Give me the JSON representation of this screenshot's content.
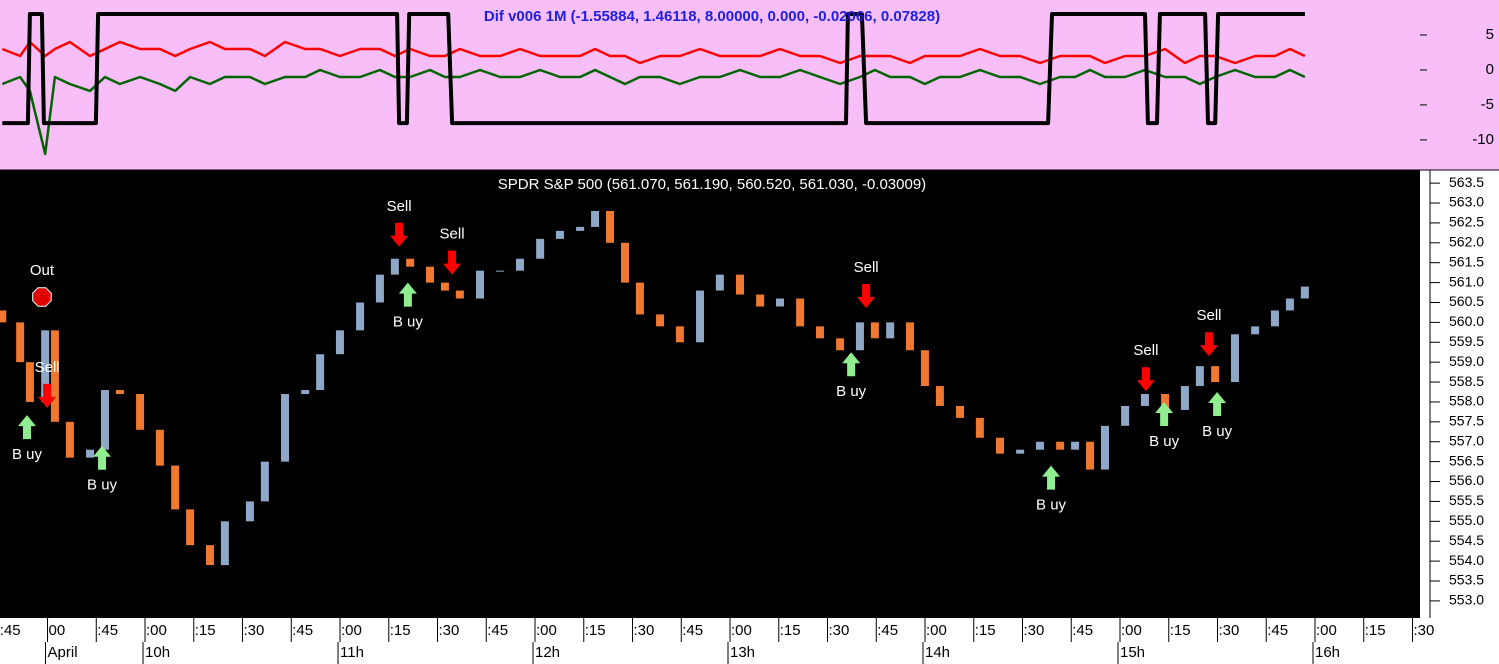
{
  "chart_data": [
    {
      "type": "line",
      "title": "Dif v006 1M (-1.55884, 1.46118, 8.00000, 0.000, -0.02066, 0.07828)",
      "xlim": [
        12.3,
        452
      ],
      "ylim": [
        -14.3,
        10
      ],
      "yticks": [
        5,
        0,
        -5,
        -10
      ],
      "background": "#f8bef8",
      "series": [
        {
          "color": "#ff0000",
          "x": [
            13,
            18.5,
            21.5,
            26.2,
            29.2,
            33.8,
            40,
            44.6,
            49.2,
            55.4,
            61.5,
            66.2,
            70.8,
            76.9,
            81.5,
            89.2,
            93.8,
            100,
            106.2,
            110.8,
            116.9,
            123.1,
            129.2,
            133.8,
            138.5,
            144.6,
            149.2,
            153.8,
            160,
            166.2,
            172.3,
            178.5,
            184.6,
            190.8,
            195.4,
            200,
            204.6,
            209.2,
            215.4,
            221.5,
            227.7,
            233.8,
            240,
            246.2,
            252.3,
            258.5,
            264.6,
            270.8,
            276.9,
            281.5,
            286.2,
            292.3,
            296.9,
            301.5,
            307.7,
            313.8,
            320,
            326.2,
            332.3,
            338.5,
            343.1,
            347.7,
            352.3,
            358.5,
            364.6,
            370.8,
            376.9,
            381.5,
            386.2,
            392.3,
            398.5,
            404.6,
            409.2,
            413.8
          ],
          "values": [
            3,
            2,
            4,
            2,
            3,
            4,
            2,
            3,
            4,
            3,
            3,
            2,
            3,
            4,
            3,
            3,
            2,
            4,
            3,
            3,
            2,
            3,
            3,
            2,
            3,
            2,
            2,
            3,
            2,
            2,
            3,
            2,
            2,
            2,
            3,
            2,
            2,
            1,
            2,
            2,
            3,
            2,
            2,
            2,
            3,
            2,
            2,
            1,
            2,
            2,
            2,
            1,
            2,
            2,
            2,
            3,
            2,
            2,
            1,
            2,
            2,
            2,
            1,
            2,
            2,
            3,
            1,
            2,
            2,
            1,
            2,
            2,
            3,
            2
          ]
        },
        {
          "color": "#006400",
          "x": [
            13,
            18.5,
            21.5,
            26.2,
            29.2,
            33.8,
            40,
            44.6,
            49.2,
            55.4,
            61.5,
            66.2,
            70.8,
            76.9,
            81.5,
            89.2,
            93.8,
            100,
            106.2,
            110.8,
            116.9,
            123.1,
            129.2,
            133.8,
            138.5,
            144.6,
            149.2,
            153.8,
            160,
            166.2,
            172.3,
            178.5,
            184.6,
            190.8,
            195.4,
            200,
            204.6,
            209.2,
            215.4,
            221.5,
            227.7,
            233.8,
            240,
            246.2,
            252.3,
            258.5,
            264.6,
            270.8,
            276.9,
            281.5,
            286.2,
            292.3,
            296.9,
            301.5,
            307.7,
            313.8,
            320,
            326.2,
            332.3,
            338.5,
            343.1,
            347.7,
            352.3,
            358.5,
            364.6,
            370.8,
            376.9,
            381.5,
            386.2,
            392.3,
            398.5,
            404.6,
            409.2,
            413.8
          ],
          "values": [
            -2,
            -1,
            -3,
            -12,
            -1,
            -2,
            -3,
            -1,
            -2,
            -1,
            -2,
            -3,
            -1,
            -2,
            -1,
            -1,
            -2,
            -1,
            -1,
            0,
            -1,
            -1,
            0,
            -1,
            -1,
            0,
            -1,
            -1,
            0,
            -1,
            -1,
            0,
            -1,
            -1,
            0,
            -1,
            -2,
            -1,
            -1,
            -2,
            -1,
            -1,
            0,
            -1,
            -1,
            0,
            -1,
            -2,
            -1,
            0,
            -1,
            -1,
            -2,
            -1,
            -1,
            0,
            -1,
            -1,
            -2,
            -1,
            -1,
            0,
            -1,
            -1,
            0,
            -1,
            -1,
            -2,
            -1,
            0,
            -1,
            -1,
            0,
            -1
          ]
        },
        {
          "color": "#000000",
          "x": [
            13,
            20.9,
            21.5,
            25.2,
            25.8,
            41.8,
            42.5,
            134.5,
            135.1,
            137.5,
            138.2,
            150.2,
            151.4,
            272.6,
            273.2,
            277.5,
            278.8,
            334.8,
            336,
            364.6,
            365.5,
            368.3,
            369.2,
            383.1,
            384,
            386.2,
            387.1,
            413.8
          ],
          "values": [
            -7.6,
            -7.6,
            8,
            8,
            -7.6,
            -7.6,
            8,
            8,
            -7.6,
            -7.6,
            8,
            8,
            -7.6,
            -7.6,
            8,
            8,
            -7.6,
            -7.6,
            8,
            8,
            -7.6,
            -7.6,
            8,
            8,
            -7.6,
            -7.6,
            8,
            8
          ]
        }
      ]
    },
    {
      "type": "candlestick",
      "title": "SPDR S&P 500 (561.070, 561.190, 560.520, 561.030, -0.03009)",
      "xlim": [
        12.3,
        452
      ],
      "ylim": [
        552.57,
        563.83
      ],
      "yticks": [
        563.5,
        {
          "value": 563,
          "label": "563.0"
        },
        562.5,
        {
          "value": 562,
          "label": "562.0"
        },
        561.5,
        {
          "value": 561,
          "label": "561.0"
        },
        560.5,
        {
          "value": 560,
          "label": "560.0"
        },
        559.5,
        {
          "value": 559,
          "label": "559.0"
        },
        558.5,
        {
          "value": 558,
          "label": "558.0"
        },
        557.5,
        {
          "value": 557,
          "label": "557.0"
        },
        556.5,
        {
          "value": 556,
          "label": "556.0"
        },
        555.5,
        {
          "value": 555,
          "label": "555.0"
        },
        554.5,
        {
          "value": 554,
          "label": "554.0"
        },
        553.5,
        {
          "value": 553,
          "label": "553.0"
        }
      ],
      "xticks": [
        {
          "value": 15,
          "label": ":45"
        },
        {
          "value": 30,
          "label": "00"
        },
        {
          "value": 45,
          "label": ":45"
        },
        {
          "value": 60,
          "label": ":00"
        },
        {
          "value": 75,
          "label": ":15"
        },
        {
          "value": 90,
          "label": ":30"
        },
        {
          "value": 105,
          "label": ":45"
        },
        {
          "value": 120,
          "label": ":00"
        },
        {
          "value": 135,
          "label": ":15"
        },
        {
          "value": 150,
          "label": ":30"
        },
        {
          "value": 165,
          "label": ":45"
        },
        {
          "value": 180,
          "label": ":00"
        },
        {
          "value": 195,
          "label": ":15"
        },
        {
          "value": 210,
          "label": ":30"
        },
        {
          "value": 225,
          "label": ":45"
        },
        {
          "value": 240,
          "label": ":00"
        },
        {
          "value": 255,
          "label": ":15"
        },
        {
          "value": 270,
          "label": ":30"
        },
        {
          "value": 285,
          "label": ":45"
        },
        {
          "value": 300,
          "label": ":00"
        },
        {
          "value": 315,
          "label": ":15"
        },
        {
          "value": 330,
          "label": ":30"
        },
        {
          "value": 345,
          "label": ":45"
        },
        {
          "value": 360,
          "label": ":00"
        },
        {
          "value": 375,
          "label": ":15"
        },
        {
          "value": 390,
          "label": ":30"
        },
        {
          "value": 405,
          "label": ":45"
        },
        {
          "value": 420,
          "label": ":00"
        },
        {
          "value": 435,
          "label": ":15"
        },
        {
          "value": 450,
          "label": ":30"
        }
      ],
      "xticks2": [
        {
          "value": 30,
          "label": "April"
        },
        {
          "value": 60,
          "label": "10h"
        },
        {
          "value": 120,
          "label": "11h"
        },
        {
          "value": 180,
          "label": "12h"
        },
        {
          "value": 240,
          "label": "13h"
        },
        {
          "value": 300,
          "label": "14h"
        },
        {
          "value": 360,
          "label": "15h"
        },
        {
          "value": 420,
          "label": "16h"
        }
      ],
      "background": "#000000",
      "up_color": "#8fa8c8",
      "down_color": "#f07830",
      "x": [
        13,
        18.5,
        21.5,
        26.2,
        29.2,
        33.8,
        40,
        44.6,
        49.2,
        55.4,
        61.5,
        66.2,
        70.8,
        76.9,
        81.5,
        89.2,
        93.8,
        100,
        106.2,
        110.8,
        116.9,
        123.1,
        129.2,
        133.8,
        138.5,
        144.6,
        149.2,
        153.8,
        160,
        166.2,
        172.3,
        178.5,
        184.6,
        190.8,
        195.4,
        200,
        204.6,
        209.2,
        215.4,
        221.5,
        227.7,
        233.8,
        240,
        246.2,
        252.3,
        258.5,
        264.6,
        270.8,
        276.9,
        281.5,
        286.2,
        292.3,
        296.9,
        301.5,
        307.7,
        313.8,
        320,
        326.2,
        332.3,
        338.5,
        343.1,
        347.7,
        352.3,
        358.5,
        364.6,
        370.8,
        376.9,
        381.5,
        386.2,
        392.3,
        398.5,
        404.6,
        409.2,
        413.8
      ],
      "open": [
        560.3,
        560.0,
        559.0,
        558.0,
        559.8,
        557.5,
        556.6,
        556.8,
        558.3,
        558.2,
        557.3,
        556.4,
        555.3,
        554.4,
        553.9,
        555.0,
        555.5,
        556.5,
        558.2,
        558.3,
        559.2,
        559.8,
        560.5,
        561.2,
        561.6,
        561.4,
        561.0,
        560.8,
        560.6,
        561.3,
        561.3,
        561.6,
        562.1,
        562.3,
        562.4,
        562.8,
        562.0,
        561.0,
        560.2,
        559.9,
        559.5,
        560.8,
        561.2,
        560.7,
        560.4,
        560.6,
        559.9,
        559.6,
        559.3,
        560.0,
        559.6,
        560.0,
        559.3,
        558.4,
        557.9,
        557.6,
        557.1,
        556.7,
        556.8,
        557.0,
        556.8,
        557.0,
        556.3,
        557.4,
        557.9,
        558.2,
        557.8,
        558.4,
        558.9,
        558.5,
        559.7,
        559.9,
        560.3,
        560.6
      ],
      "close": [
        560.0,
        559.0,
        558.0,
        559.8,
        557.5,
        556.6,
        556.8,
        558.3,
        558.2,
        557.3,
        556.4,
        555.3,
        554.4,
        553.9,
        555.0,
        555.5,
        556.5,
        558.2,
        558.3,
        559.2,
        559.8,
        560.5,
        561.2,
        561.6,
        561.4,
        561.0,
        560.8,
        560.6,
        561.3,
        561.3,
        561.6,
        562.1,
        562.3,
        562.4,
        562.8,
        562.0,
        561.0,
        560.2,
        559.9,
        559.5,
        560.8,
        561.2,
        560.7,
        560.4,
        560.6,
        559.9,
        559.6,
        559.3,
        560.0,
        559.6,
        560.0,
        559.3,
        558.4,
        557.9,
        557.6,
        557.1,
        556.7,
        556.8,
        557.0,
        556.8,
        557.0,
        556.3,
        557.4,
        557.9,
        558.2,
        557.8,
        558.4,
        558.9,
        558.5,
        559.7,
        559.9,
        560.3,
        560.6,
        560.9
      ],
      "signals": [
        {
          "label": "Out",
          "arrow": "stop",
          "x": 25.2,
          "y": 560.64,
          "color": "#e00000"
        },
        {
          "label": "Sell",
          "arrow": "down",
          "x": 26.8,
          "y": 557.85,
          "color": "#ff0000"
        },
        {
          "label": "B uy",
          "arrow": "up",
          "x": 20.6,
          "y": 557.67,
          "color": "#90ee90"
        },
        {
          "label": "B uy",
          "arrow": "up",
          "x": 43.7,
          "y": 556.9,
          "color": "#90ee90"
        },
        {
          "label": "Sell",
          "arrow": "down",
          "x": 135.1,
          "y": 561.9,
          "color": "#ff0000"
        },
        {
          "label": "B uy",
          "arrow": "up",
          "x": 137.8,
          "y": 561.0,
          "color": "#90ee90"
        },
        {
          "label": "Sell",
          "arrow": "down",
          "x": 151.4,
          "y": 561.2,
          "color": "#ff0000"
        },
        {
          "label": "Sell",
          "arrow": "down",
          "x": 278.8,
          "y": 560.36,
          "color": "#ff0000"
        },
        {
          "label": "B uy",
          "arrow": "up",
          "x": 274.2,
          "y": 559.25,
          "color": "#90ee90"
        },
        {
          "label": "B uy",
          "arrow": "up",
          "x": 335.7,
          "y": 556.4,
          "color": "#90ee90"
        },
        {
          "label": "Sell",
          "arrow": "down",
          "x": 364.9,
          "y": 558.27,
          "color": "#ff0000"
        },
        {
          "label": "B uy",
          "arrow": "up",
          "x": 370.5,
          "y": 558.0,
          "color": "#90ee90"
        },
        {
          "label": "Sell",
          "arrow": "down",
          "x": 384.3,
          "y": 559.15,
          "color": "#ff0000"
        },
        {
          "label": "B uy",
          "arrow": "up",
          "x": 386.8,
          "y": 558.25,
          "color": "#90ee90"
        }
      ]
    }
  ]
}
